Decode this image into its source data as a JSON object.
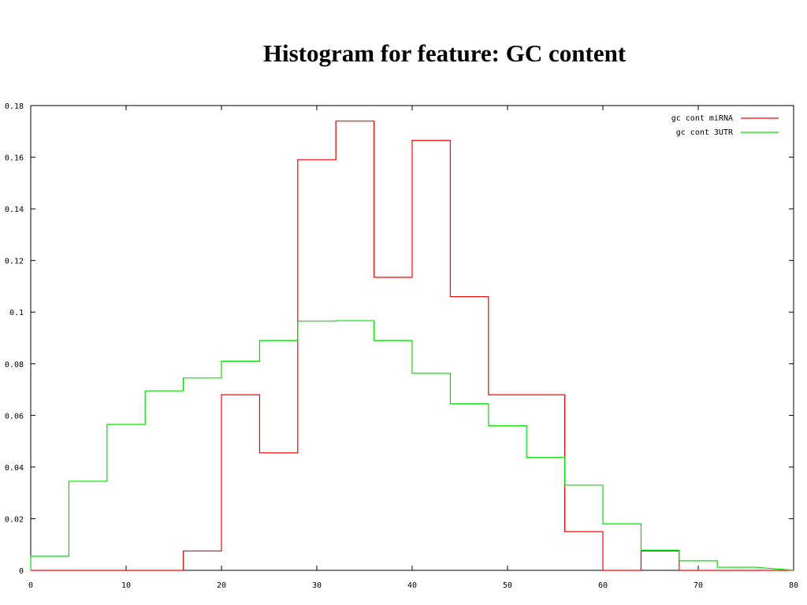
{
  "chart_data": {
    "type": "line",
    "step": true,
    "title": "Histogram for feature: GC content",
    "xlabel": "",
    "ylabel": "",
    "xlim": [
      0,
      80
    ],
    "ylim": [
      0,
      0.18
    ],
    "xticks": [
      0,
      10,
      20,
      30,
      40,
      50,
      60,
      70,
      80
    ],
    "xtick_labels": [
      "0",
      "10",
      "20",
      "30",
      "40",
      "50",
      "60",
      "70",
      "80"
    ],
    "yticks": [
      0,
      0.02,
      0.04,
      0.06,
      0.08,
      0.1,
      0.12,
      0.14,
      0.16,
      0.18
    ],
    "ytick_labels": [
      "0",
      "0.02",
      "0.04",
      "0.06",
      "0.08",
      "0.1",
      "0.12",
      "0.14",
      "0.16",
      "0.18"
    ],
    "grid": false,
    "legend_position": "top-right",
    "bin_edges": [
      0,
      4,
      8,
      12,
      16,
      20,
      24,
      28,
      32,
      36,
      40,
      44,
      48,
      52,
      56,
      60,
      64,
      68,
      72,
      76
    ],
    "series": [
      {
        "name": "gc cont miRNA",
        "color": "#ff0000",
        "values": [
          0,
          0,
          0,
          0,
          0.0075,
          0.068,
          0.0455,
          0.159,
          0.174,
          0.1135,
          0.1665,
          0.106,
          0.068,
          0.068,
          0.015,
          0,
          0.0075,
          0,
          0
        ]
      },
      {
        "name": "gc cont 3UTR",
        "color": "#00e000",
        "values": [
          0.0055,
          0.0345,
          0.0565,
          0.0695,
          0.0745,
          0.081,
          0.089,
          0.0965,
          0.0967,
          0.089,
          0.0763,
          0.0645,
          0.056,
          0.0437,
          0.033,
          0.018,
          0.0078,
          0.0037,
          0.0012
        ]
      }
    ]
  }
}
